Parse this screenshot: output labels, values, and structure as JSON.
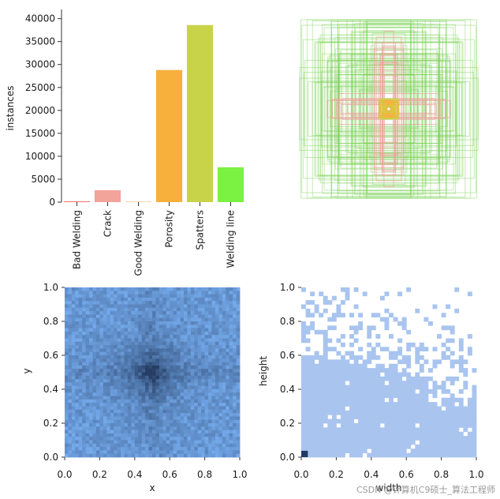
{
  "chart_data": [
    {
      "type": "bar",
      "ylabel": "instances",
      "categories": [
        "Bad Welding",
        "Crack",
        "Good Welding",
        "Porosity",
        "Spatters",
        "Welding line"
      ],
      "values": [
        150,
        2600,
        120,
        28800,
        38600,
        7600
      ],
      "colors": [
        "#e85b5b",
        "#f2a39a",
        "#f4c09a",
        "#f7b03c",
        "#c9d34a",
        "#7bf142"
      ],
      "ylim": [
        0,
        42000
      ],
      "yticks": [
        0,
        5000,
        10000,
        15000,
        20000,
        25000,
        30000,
        35000,
        40000
      ],
      "ytick_labels": [
        "0",
        "5000",
        "10000",
        "15000",
        "20000",
        "25000",
        "30000",
        "35000",
        "40000"
      ]
    },
    {
      "type": "box-overlay",
      "title": "",
      "box_colors": [
        "#7fd35b",
        "#e9a59c",
        "#f7b03c",
        "#c9d34a"
      ]
    },
    {
      "type": "heatmap",
      "xlabel": "x",
      "ylabel": "y",
      "xlim": [
        0,
        1
      ],
      "ylim": [
        0,
        1
      ],
      "xticks": [
        0.0,
        0.2,
        0.4,
        0.6,
        0.8,
        1.0
      ],
      "xtick_labels": [
        "0.0",
        "0.2",
        "0.4",
        "0.6",
        "0.8",
        "1.0"
      ],
      "yticks": [
        0.0,
        0.2,
        0.4,
        0.6,
        0.8,
        1.0
      ],
      "ytick_labels": [
        "0.0",
        "0.2",
        "0.4",
        "0.6",
        "0.8",
        "1.0"
      ],
      "peak": [
        0.5,
        0.5
      ],
      "color": "#4f8fe0"
    },
    {
      "type": "heatmap",
      "xlabel": "width",
      "ylabel": "height",
      "xlim": [
        0,
        1
      ],
      "ylim": [
        0,
        1
      ],
      "xticks": [
        0.0,
        0.2,
        0.4,
        0.6,
        0.8,
        1.0
      ],
      "xtick_labels": [
        "0.0",
        "0.2",
        "0.4",
        "0.6",
        "0.8",
        "1.0"
      ],
      "yticks": [
        0.0,
        0.2,
        0.4,
        0.6,
        0.8,
        1.0
      ],
      "ytick_labels": [
        "0.0",
        "0.2",
        "0.4",
        "0.6",
        "0.8",
        "1.0"
      ],
      "color": "#a9c5ef"
    }
  ],
  "watermark": "CSDN @计算机C9硕士_算法工程师"
}
